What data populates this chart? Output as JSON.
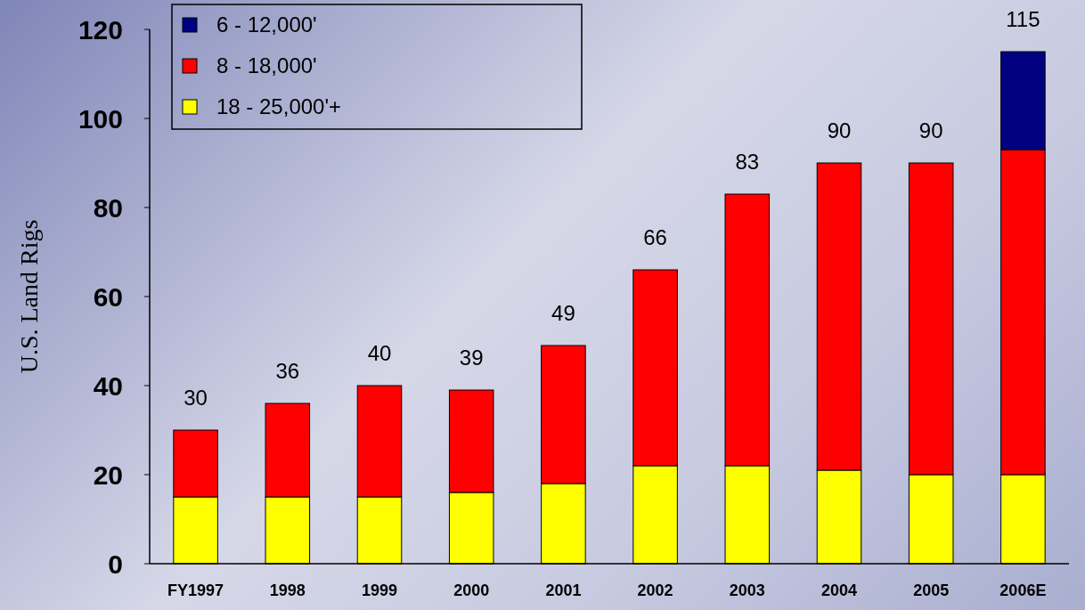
{
  "chart_data": {
    "type": "bar",
    "stacked": true,
    "ylabel": "U.S. Land Rigs",
    "categories": [
      "FY1997",
      "1998",
      "1999",
      "2000",
      "2001",
      "2002",
      "2003",
      "2004",
      "2005",
      "2006E"
    ],
    "series": [
      {
        "name": "18 - 25,000'+",
        "color": "#ffff00",
        "values": [
          15,
          15,
          15,
          16,
          18,
          22,
          22,
          21,
          20,
          20
        ]
      },
      {
        "name": "8 - 18,000'",
        "color": "#ff0000",
        "values": [
          15,
          21,
          25,
          23,
          31,
          44,
          61,
          69,
          70,
          73
        ]
      },
      {
        "name": "6 - 12,000'",
        "color": "#000080",
        "values": [
          null,
          null,
          null,
          null,
          null,
          null,
          null,
          null,
          null,
          22
        ]
      }
    ],
    "totals": [
      "30",
      "36",
      "40",
      "39",
      "49",
      "66",
      "83",
      "90",
      "90",
      "115"
    ],
    "ylim": [
      0,
      120
    ],
    "yticks": [
      0,
      20,
      40,
      60,
      80,
      100,
      120
    ],
    "grid": false,
    "legend": "top left"
  }
}
